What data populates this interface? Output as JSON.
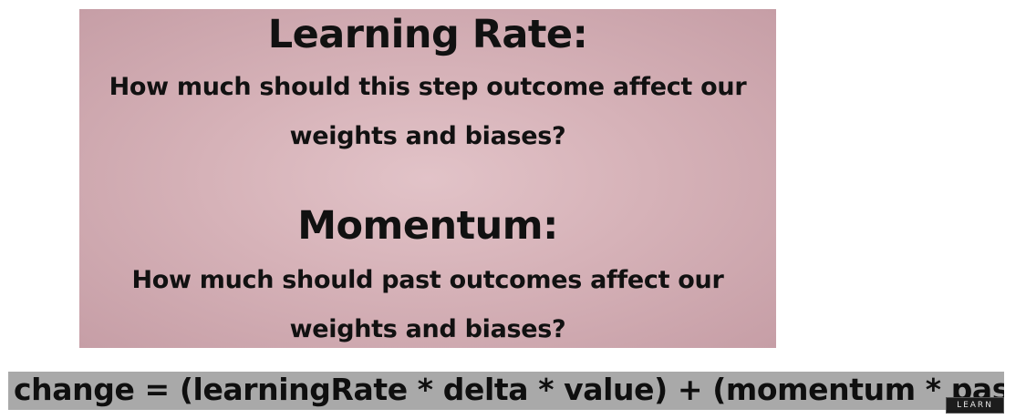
{
  "slide": {
    "sections": [
      {
        "heading": "Learning Rate:",
        "question_line1": "How much should this step outcome affect our",
        "question_line2": "weights and biases?"
      },
      {
        "heading": "Momentum:",
        "question_line1": "How much should past outcomes affect our",
        "question_line2": "weights and biases?"
      }
    ],
    "colors": {
      "background": "#d6b2b8",
      "text": "#111111"
    }
  },
  "formula": {
    "text": "change = (learningRate * delta * value) + (momentum * pastChange)",
    "background": "#a9a9a9"
  },
  "watermark": {
    "text": "LEARN"
  }
}
